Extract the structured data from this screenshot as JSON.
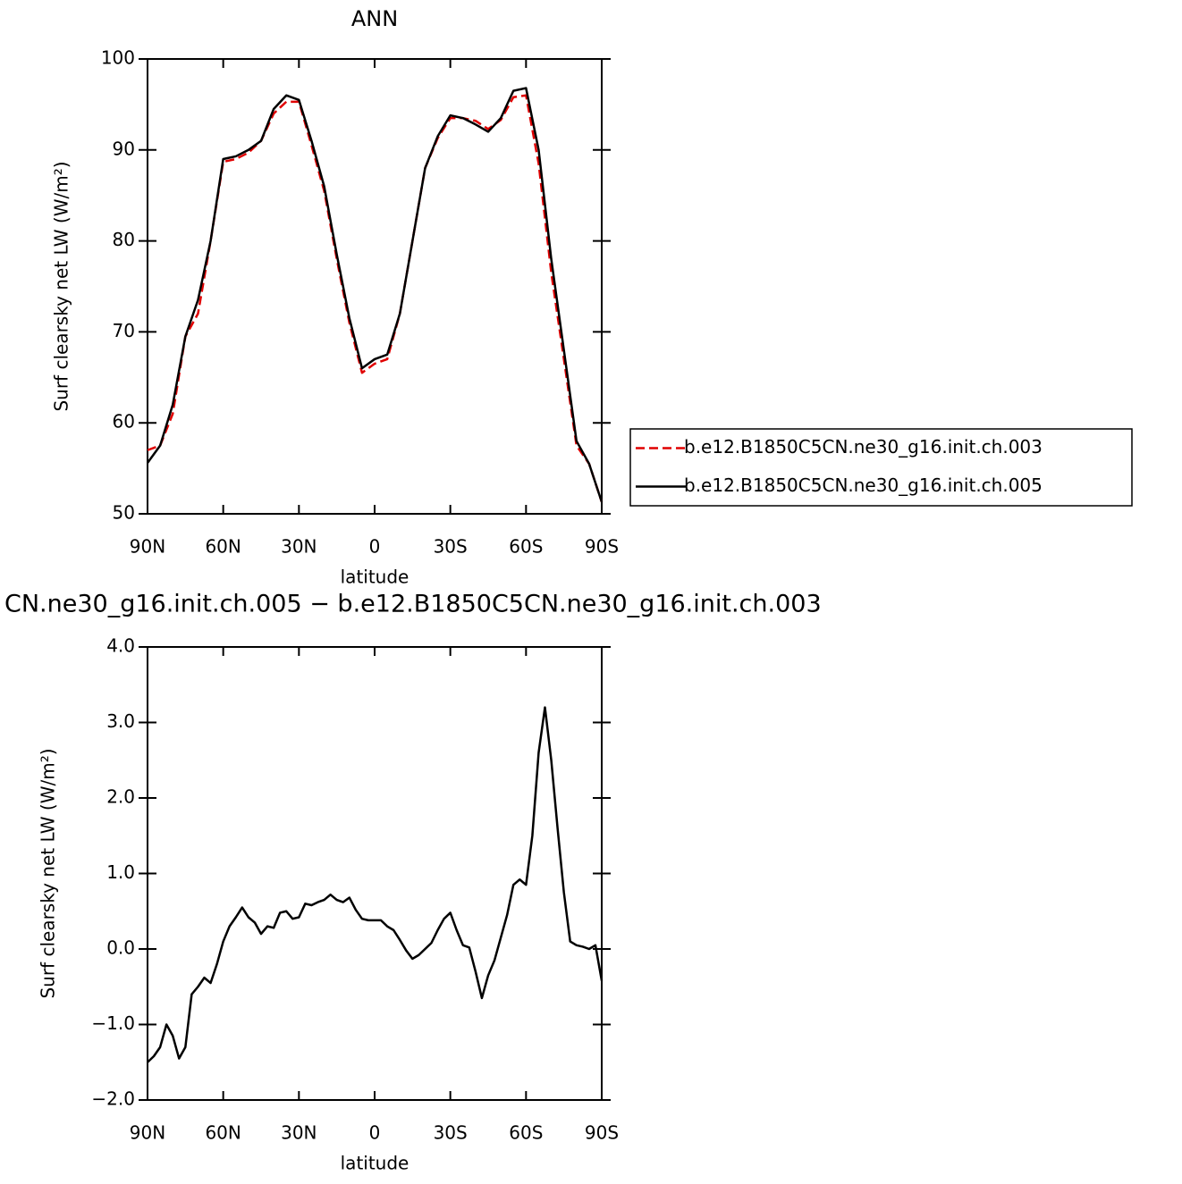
{
  "chart_data": [
    {
      "type": "line",
      "title": "ANN",
      "xlabel": "latitude",
      "ylabel": "Surf clearsky net LW (W/m²)",
      "x": [
        90,
        85,
        80,
        75,
        70,
        65,
        60,
        55,
        50,
        45,
        40,
        35,
        30,
        25,
        20,
        15,
        10,
        5,
        0,
        -5,
        -10,
        -15,
        -20,
        -25,
        -30,
        -35,
        -40,
        -45,
        -50,
        -55,
        -60,
        -65,
        -70,
        -75,
        -80,
        -85,
        -90
      ],
      "series": [
        {
          "name": "b.e12.B1850C5CN.ne30_g16.init.ch.003",
          "color": "#e00000",
          "line_style": "dashed",
          "values": [
            57,
            57.5,
            61,
            69.5,
            72,
            80,
            88.7,
            89,
            89.7,
            91,
            94,
            95.3,
            95.3,
            90.5,
            85.5,
            78,
            71,
            65.5,
            66.5,
            67,
            72,
            80,
            88,
            91.3,
            93.5,
            93.5,
            93.2,
            92.3,
            93.3,
            95.8,
            96,
            88.5,
            76.5,
            67,
            57.5,
            55.5,
            51.3
          ]
        },
        {
          "name": "b.e12.B1850C5CN.ne30_g16.init.ch.005",
          "color": "#000000",
          "line_style": "solid",
          "values": [
            55.6,
            57.5,
            62,
            69.5,
            73.5,
            80,
            89,
            89.3,
            90,
            91,
            94.5,
            96,
            95.5,
            91,
            86,
            78.5,
            71.5,
            66,
            67,
            67.5,
            72,
            80,
            88,
            91.5,
            93.8,
            93.5,
            92.8,
            92,
            93.5,
            96.5,
            96.8,
            90,
            78,
            68,
            58,
            55.5,
            51.3
          ]
        }
      ],
      "xlim": [
        90,
        -90
      ],
      "xticks": [
        {
          "value": 90,
          "label": "90N"
        },
        {
          "value": 60,
          "label": "60N"
        },
        {
          "value": 30,
          "label": "30N"
        },
        0,
        {
          "value": -30,
          "label": "30S"
        },
        {
          "value": -60,
          "label": "60S"
        },
        {
          "value": -90,
          "label": "90S"
        }
      ],
      "ylim": [
        50,
        100
      ],
      "yticks": [
        50,
        60,
        70,
        80,
        90,
        100
      ],
      "legend": "right"
    },
    {
      "type": "line",
      "title": "CN.ne30_g16.init.ch.005 − b.e12.B1850C5CN.ne30_g16.init.ch.003",
      "xlabel": "latitude",
      "ylabel": "Surf clearsky net LW (W/m²)",
      "x": [
        90,
        87.5,
        85,
        82.5,
        80,
        77.5,
        75,
        72.5,
        70,
        67.5,
        65,
        62.5,
        60,
        57.5,
        55,
        52.5,
        50,
        47.5,
        45,
        42.5,
        40,
        37.5,
        35,
        32.5,
        30,
        27.5,
        25,
        22.5,
        20,
        17.5,
        15,
        12.5,
        10,
        7.5,
        5,
        2.5,
        0,
        -2.5,
        -5,
        -7.5,
        -10,
        -12.5,
        -15,
        -17.5,
        -20,
        -22.5,
        -25,
        -27.5,
        -30,
        -32.5,
        -35,
        -37.5,
        -40,
        -42.5,
        -45,
        -47.5,
        -50,
        -52.5,
        -55,
        -57.5,
        -60,
        -62.5,
        -65,
        -67.5,
        -70,
        -72.5,
        -75,
        -77.5,
        -80,
        -82.5,
        -85,
        -87.5,
        -90
      ],
      "series": [
        {
          "color": "#000000",
          "line_style": "solid",
          "values": [
            -1.5,
            -1.42,
            -1.3,
            -1.0,
            -1.15,
            -1.45,
            -1.3,
            -0.6,
            -0.5,
            -0.38,
            -0.45,
            -0.2,
            0.1,
            0.3,
            0.42,
            0.55,
            0.42,
            0.35,
            0.2,
            0.3,
            0.28,
            0.48,
            0.5,
            0.4,
            0.42,
            0.6,
            0.58,
            0.62,
            0.65,
            0.72,
            0.65,
            0.62,
            0.68,
            0.52,
            0.4,
            0.38,
            0.38,
            0.38,
            0.3,
            0.25,
            0.12,
            -0.02,
            -0.13,
            -0.08,
            0.0,
            0.08,
            0.25,
            0.4,
            0.48,
            0.25,
            0.05,
            0.02,
            -0.3,
            -0.65,
            -0.35,
            -0.15,
            0.15,
            0.45,
            0.85,
            0.92,
            0.85,
            1.5,
            2.6,
            3.2,
            2.5,
            1.6,
            0.75,
            0.1,
            0.05,
            0.03,
            0.0,
            0.05,
            -0.42
          ]
        }
      ],
      "xlim": [
        90,
        -90
      ],
      "xticks": [
        {
          "value": 90,
          "label": "90N"
        },
        {
          "value": 60,
          "label": "60N"
        },
        {
          "value": 30,
          "label": "30N"
        },
        0,
        {
          "value": -30,
          "label": "30S"
        },
        {
          "value": -60,
          "label": "60S"
        },
        {
          "value": -90,
          "label": "90S"
        }
      ],
      "ylim": [
        -2,
        4
      ],
      "yticks": [
        {
          "value": -2,
          "label": "−2.0"
        },
        {
          "value": -1,
          "label": "−1.0"
        },
        {
          "value": 0,
          "label": "0.0"
        },
        {
          "value": 1,
          "label": "1.0"
        },
        {
          "value": 2,
          "label": "2.0"
        },
        {
          "value": 3,
          "label": "3.0"
        },
        {
          "value": 4,
          "label": "4.0"
        }
      ]
    }
  ]
}
